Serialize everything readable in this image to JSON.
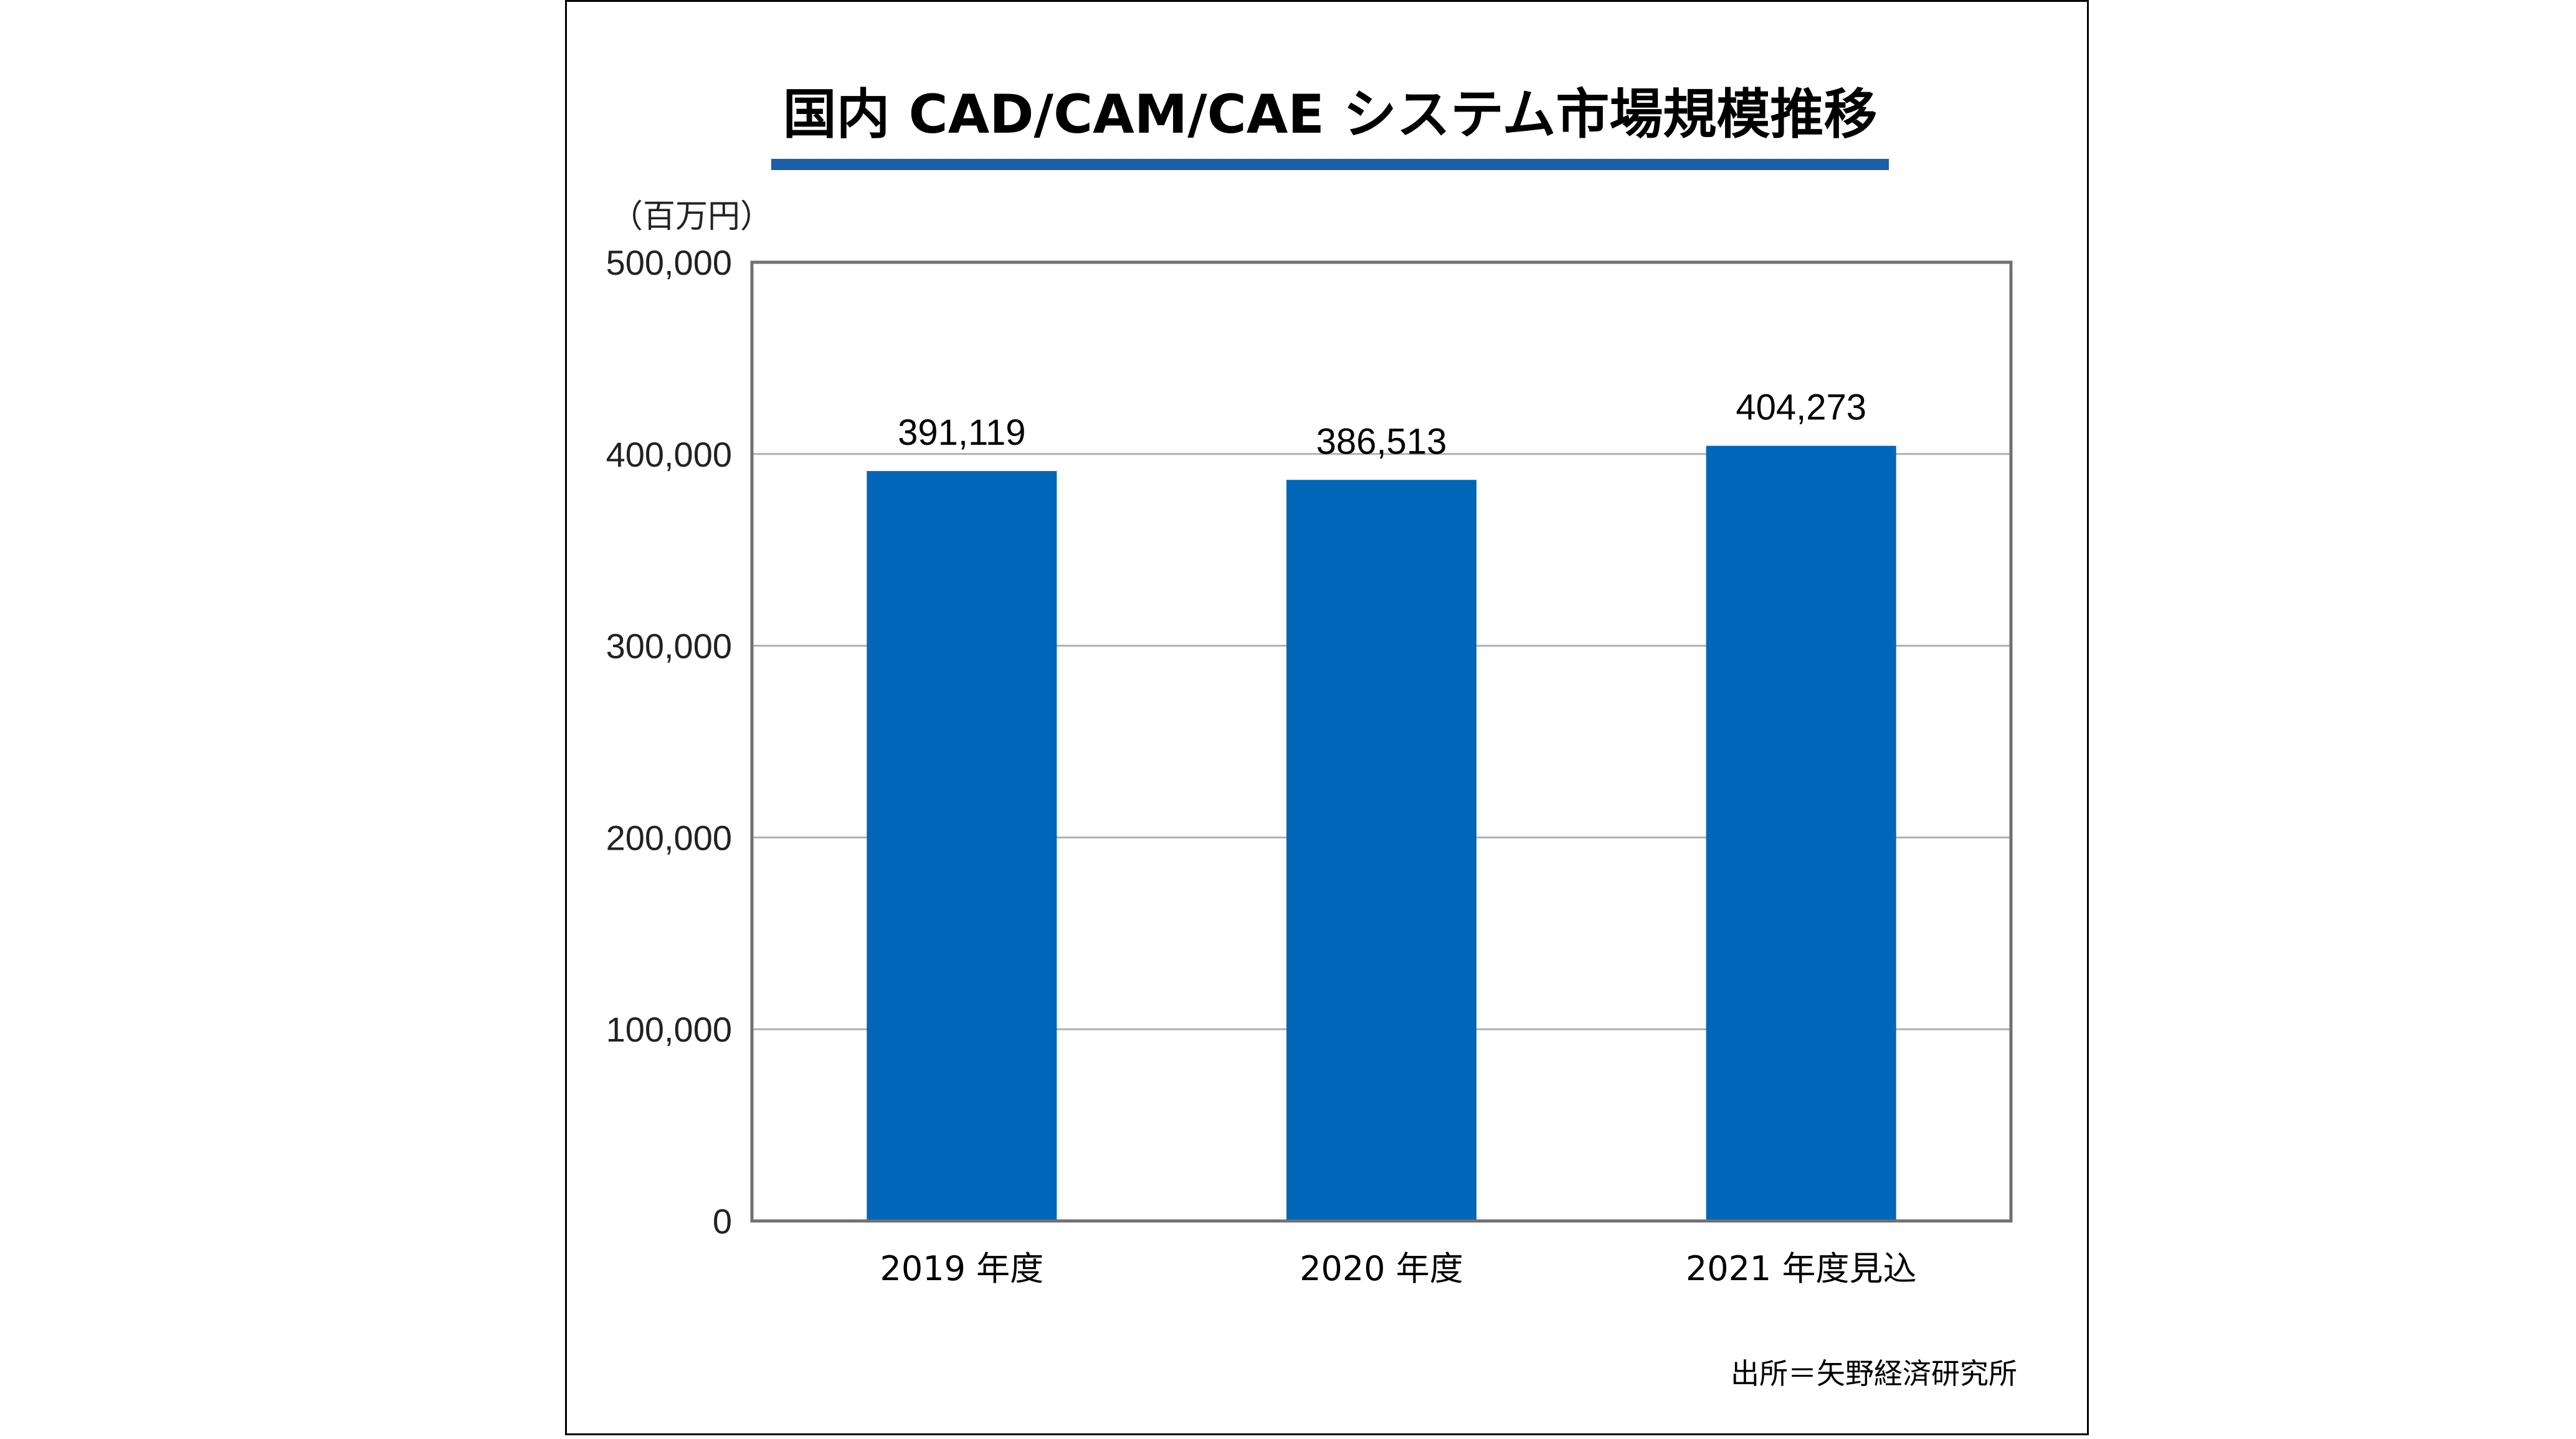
{
  "chart_data": {
    "type": "bar",
    "title": "国内 CAD/CAM/CAE システム市場規模推移",
    "ylabel": "（百万円）",
    "source": "出所＝矢野経済研究所",
    "categories": [
      "2019 年度",
      "2020 年度",
      "2021 年度見込"
    ],
    "values": [
      391119,
      386513,
      404273
    ],
    "value_labels": [
      "391,119",
      "386,513",
      "404,273"
    ],
    "ylim": [
      0,
      500000
    ],
    "yticks": [
      0,
      100000,
      200000,
      300000,
      400000,
      500000
    ],
    "ytick_labels": [
      "0",
      "100,000",
      "200,000",
      "300,000",
      "400,000",
      "500,000"
    ],
    "grid": true,
    "bar_color": "#0066b8",
    "title_underline_color": "#1a5fa8",
    "grid_color": "#b0b0b0",
    "axis_color": "#707070"
  }
}
